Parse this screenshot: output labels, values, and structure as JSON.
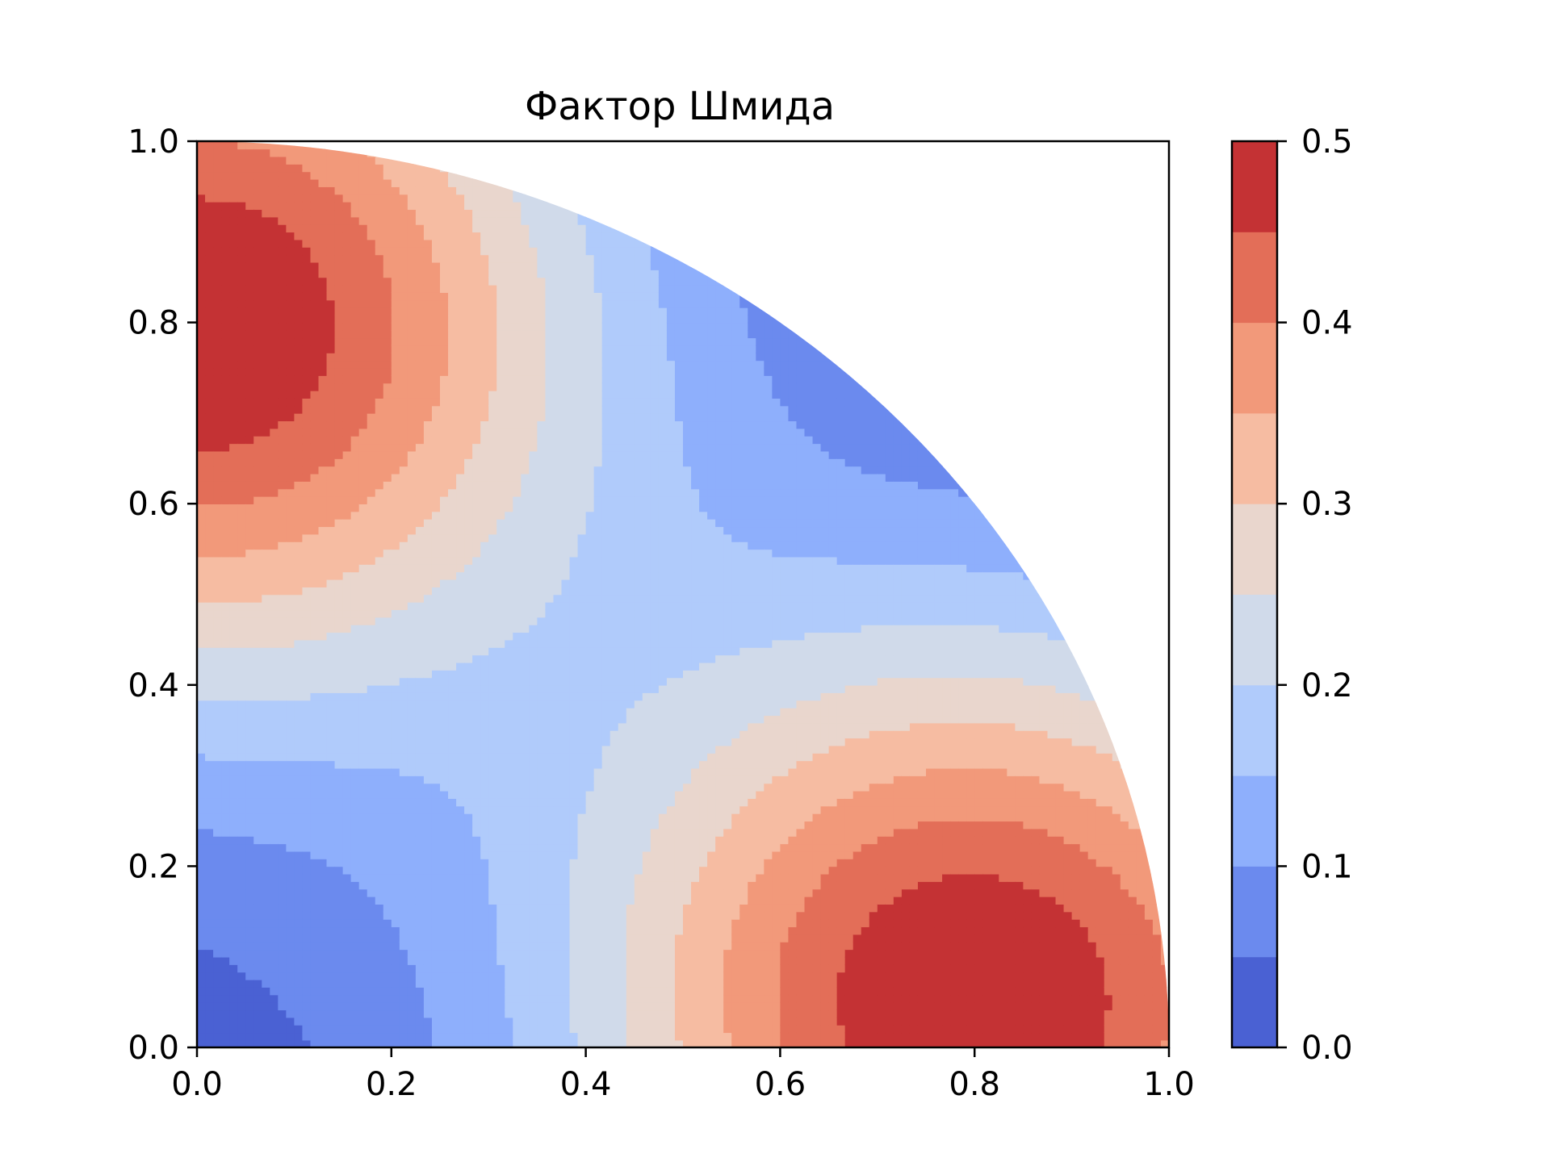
{
  "chart_data": {
    "type": "contour",
    "title": "Фактор Шмида",
    "xlabel": "",
    "ylabel": "",
    "xlim": [
      0.0,
      1.0
    ],
    "ylim": [
      0.0,
      1.0
    ],
    "x_ticks": [
      "0.0",
      "0.2",
      "0.4",
      "0.6",
      "0.8",
      "1.0"
    ],
    "y_ticks": [
      "0.0",
      "0.2",
      "0.4",
      "0.6",
      "0.8",
      "1.0"
    ],
    "domain": "quarter unit disc (x >= 0, y >= 0, x^2 + y^2 <= 1)",
    "grid": false,
    "colormap": "coolwarm",
    "colorbar": {
      "levels": [
        0.0,
        0.05,
        0.1,
        0.15,
        0.2,
        0.25,
        0.3,
        0.35,
        0.4,
        0.45,
        0.5
      ],
      "tick_values": [
        0.0,
        0.1,
        0.2,
        0.3,
        0.4,
        0.5
      ],
      "tick_labels": [
        "0.0",
        "0.1",
        "0.2",
        "0.3",
        "0.4",
        "0.5"
      ],
      "colors": [
        "#4a61d3",
        "#6b8aee",
        "#8eaffc",
        "#b0cbfb",
        "#d0daea",
        "#e9d6cd",
        "#f6bca2",
        "#f2997a",
        "#e36e58",
        "#c43234"
      ]
    },
    "maxima": [
      {
        "x": 0.0,
        "y": 0.8,
        "value": 0.5
      },
      {
        "x": 0.8,
        "y": 0.05,
        "value": 0.5
      }
    ],
    "minimum": {
      "x": 0.0,
      "y": 0.0,
      "value": 0.0
    }
  }
}
